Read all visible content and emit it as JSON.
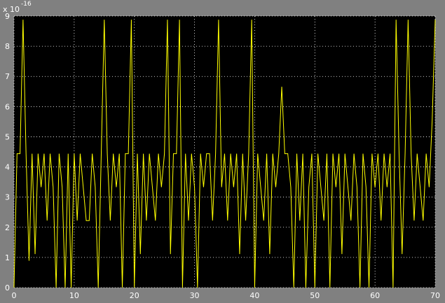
{
  "chart_data": {
    "type": "line",
    "y_multiplier": {
      "base": "x 10",
      "exponent": "-16"
    },
    "x": [
      0,
      0.5,
      1,
      1.5,
      2,
      2.5,
      3,
      3.5,
      4,
      4.5,
      5,
      5.5,
      6,
      6.5,
      7,
      7.5,
      8,
      8.5,
      9,
      9.5,
      10,
      10.5,
      11,
      11.5,
      12,
      12.5,
      13,
      13.5,
      14,
      14.5,
      15,
      15.5,
      16,
      16.5,
      17,
      17.5,
      18,
      18.5,
      19,
      19.5,
      20,
      20.5,
      21,
      21.5,
      22,
      22.5,
      23,
      23.5,
      24,
      24.5,
      25,
      25.5,
      26,
      26.5,
      27,
      27.5,
      28,
      28.5,
      29,
      29.5,
      30,
      30.5,
      31,
      31.5,
      32,
      32.5,
      33,
      33.5,
      34,
      34.5,
      35,
      35.5,
      36,
      36.5,
      37,
      37.5,
      38,
      38.5,
      39,
      39.5,
      40,
      40.5,
      41,
      41.5,
      42,
      42.5,
      43,
      43.5,
      44,
      44.5,
      45,
      45.5,
      46,
      46.5,
      47,
      47.5,
      48,
      48.5,
      49,
      49.5,
      50,
      50.5,
      51,
      51.5,
      52,
      52.5,
      53,
      53.5,
      54,
      54.5,
      55,
      55.5,
      56,
      56.5,
      57,
      57.5,
      58,
      58.5,
      59,
      59.5,
      60,
      60.5,
      61,
      61.5,
      62,
      62.5,
      63,
      63.5,
      64,
      64.5,
      65,
      65.5,
      66,
      66.5,
      67,
      67.5,
      68,
      68.5,
      69,
      69.5,
      70
    ],
    "series": [
      {
        "color": "#ffff00",
        "values": [
          0,
          4.44,
          4.44,
          8.88,
          4.44,
          0.89,
          4.44,
          1.11,
          4.44,
          3.33,
          4.44,
          2.22,
          4.44,
          3.33,
          0,
          4.44,
          3.33,
          0,
          4.44,
          0,
          4.44,
          2.22,
          4.44,
          3.33,
          2.22,
          2.22,
          4.44,
          3.33,
          0,
          4.44,
          8.88,
          4.44,
          2.22,
          4.44,
          3.33,
          4.44,
          0,
          4.44,
          4.44,
          8.88,
          0,
          4.44,
          1.11,
          4.44,
          2.22,
          4.44,
          3.33,
          2.22,
          4.44,
          3.33,
          4.44,
          8.88,
          1.11,
          4.44,
          4.44,
          8.88,
          0,
          4.44,
          2.22,
          4.44,
          3.33,
          0,
          4.44,
          3.33,
          4.44,
          4.44,
          2.22,
          4.44,
          8.88,
          3.33,
          4.44,
          2.22,
          4.44,
          3.33,
          4.44,
          1.11,
          4.44,
          2.22,
          4.44,
          8.88,
          0,
          4.44,
          3.33,
          2.22,
          4.44,
          1.11,
          4.44,
          3.33,
          4.44,
          6.66,
          4.44,
          4.44,
          3.33,
          0,
          4.44,
          2.22,
          4.44,
          0,
          3.33,
          4.44,
          0,
          4.44,
          3.33,
          2.22,
          4.44,
          0,
          4.44,
          3.33,
          4.44,
          1.11,
          4.44,
          3.33,
          2.22,
          4.44,
          3.33,
          0,
          4.44,
          3.33,
          0,
          4.44,
          3.33,
          4.44,
          2.22,
          4.44,
          3.33,
          4.44,
          0,
          8.88,
          4.44,
          1.11,
          4.44,
          8.88,
          4.44,
          2.22,
          4.44,
          3.33,
          2.22,
          4.44,
          3.33,
          5.55,
          8.88
        ]
      }
    ],
    "xlim": [
      0,
      70
    ],
    "xticks": [
      0,
      10,
      20,
      30,
      40,
      50,
      60,
      70
    ],
    "ylim": [
      0,
      9
    ],
    "yticks": [
      0,
      1,
      2,
      3,
      4,
      5,
      6,
      7,
      8,
      9
    ],
    "grid": true,
    "background": "#000000"
  }
}
